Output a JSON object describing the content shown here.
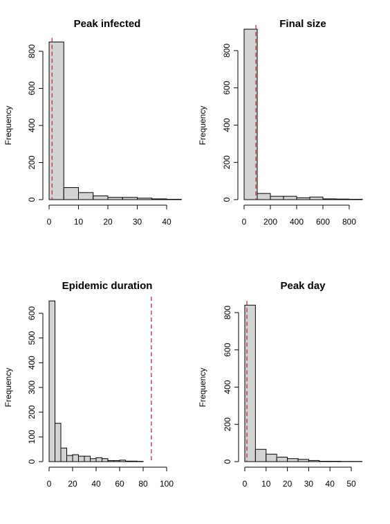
{
  "chart_data": [
    {
      "type": "histogram",
      "title": "Peak infected",
      "xlabel": "",
      "ylabel": "Frequency",
      "xlim": [
        0,
        45
      ],
      "ylim": [
        0,
        850
      ],
      "x_ticks": [
        0,
        10,
        20,
        30,
        40
      ],
      "y_ticks": [
        0,
        200,
        400,
        600,
        800
      ],
      "bins": [
        [
          0,
          5
        ],
        [
          5,
          10
        ],
        [
          10,
          15
        ],
        [
          15,
          20
        ],
        [
          20,
          25
        ],
        [
          25,
          30
        ],
        [
          30,
          35
        ],
        [
          35,
          40
        ],
        [
          40,
          45
        ]
      ],
      "counts": [
        850,
        65,
        38,
        20,
        12,
        12,
        8,
        4,
        2
      ],
      "reference_line": 1
    },
    {
      "type": "histogram",
      "title": "Final size",
      "xlabel": "",
      "ylabel": "Frequency",
      "xlim": [
        0,
        900
      ],
      "ylim": [
        0,
        915
      ],
      "x_ticks": [
        0,
        200,
        400,
        600,
        800
      ],
      "y_ticks": [
        0,
        200,
        400,
        600,
        800
      ],
      "bins": [
        [
          0,
          100
        ],
        [
          100,
          200
        ],
        [
          200,
          300
        ],
        [
          300,
          400
        ],
        [
          400,
          500
        ],
        [
          500,
          600
        ],
        [
          600,
          700
        ],
        [
          700,
          800
        ],
        [
          800,
          900
        ]
      ],
      "counts": [
        915,
        33,
        18,
        18,
        10,
        14,
        4,
        3,
        2
      ],
      "reference_line": 90
    },
    {
      "type": "histogram",
      "title": "Epidemic duration",
      "xlabel": "",
      "ylabel": "Frequency",
      "xlim": [
        0,
        100
      ],
      "ylim": [
        0,
        650
      ],
      "x_ticks": [
        0,
        20,
        40,
        60,
        80,
        100
      ],
      "y_ticks": [
        0,
        100,
        200,
        300,
        400,
        500,
        600
      ],
      "bins": [
        [
          0,
          5
        ],
        [
          5,
          10
        ],
        [
          10,
          15
        ],
        [
          15,
          20
        ],
        [
          20,
          25
        ],
        [
          25,
          30
        ],
        [
          30,
          35
        ],
        [
          35,
          40
        ],
        [
          40,
          45
        ],
        [
          45,
          50
        ],
        [
          50,
          55
        ],
        [
          55,
          60
        ],
        [
          60,
          65
        ],
        [
          65,
          70
        ],
        [
          70,
          75
        ],
        [
          75,
          80
        ]
      ],
      "counts": [
        650,
        155,
        55,
        25,
        28,
        22,
        22,
        12,
        16,
        12,
        4,
        4,
        6,
        2,
        2,
        1
      ],
      "reference_line": 87
    },
    {
      "type": "histogram",
      "title": "Peak day",
      "xlabel": "",
      "ylabel": "Frequency",
      "xlim": [
        0,
        55
      ],
      "ylim": [
        0,
        840
      ],
      "x_ticks": [
        0,
        10,
        20,
        30,
        40,
        50
      ],
      "y_ticks": [
        0,
        200,
        400,
        600,
        800
      ],
      "bins": [
        [
          0,
          5
        ],
        [
          5,
          10
        ],
        [
          10,
          15
        ],
        [
          15,
          20
        ],
        [
          20,
          25
        ],
        [
          25,
          30
        ],
        [
          30,
          35
        ],
        [
          35,
          40
        ],
        [
          40,
          45
        ],
        [
          45,
          50
        ],
        [
          50,
          55
        ]
      ],
      "counts": [
        840,
        66,
        40,
        24,
        16,
        12,
        6,
        2,
        2,
        1,
        1
      ],
      "reference_line": 1
    }
  ]
}
